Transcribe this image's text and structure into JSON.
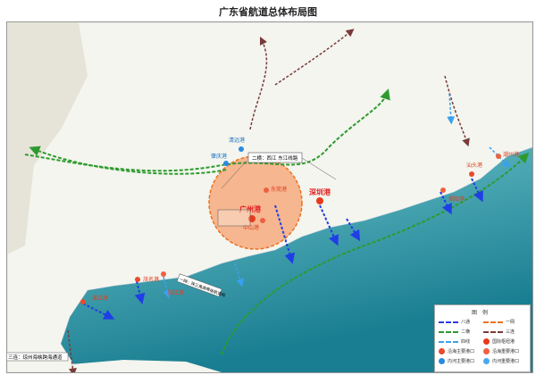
{
  "title": "广东省航道总体布局图",
  "legend": {
    "title": "图例",
    "items": [
      {
        "label": "八通",
        "kind": "line",
        "color": "#2a3de0"
      },
      {
        "label": "一网",
        "kind": "line",
        "color": "#f07020"
      },
      {
        "label": "二横",
        "kind": "line",
        "color": "#2e9a2e"
      },
      {
        "label": "三连",
        "kind": "line",
        "color": "#7a3a3a"
      },
      {
        "label": "四线",
        "kind": "line",
        "color": "#3aa0f0"
      },
      {
        "label": "国际枢纽港",
        "kind": "dot",
        "color": "#e83a1a"
      },
      {
        "label": "沿海主要港口",
        "kind": "dot",
        "color": "#e84a2a"
      },
      {
        "label": "沿海重要港口",
        "kind": "dot",
        "color": "#f06040"
      },
      {
        "label": "内河主要港口",
        "kind": "dot",
        "color": "#2a8ae0"
      },
      {
        "label": "内河重要港口",
        "kind": "dot",
        "color": "#4aa8f0"
      }
    ]
  },
  "ports": {
    "guangzhou": "广州港",
    "shenzhen": "深圳港",
    "dongguan": "东莞港",
    "zhongshan": "中山港",
    "qingyuan": "清远港",
    "zhaoqing": "肇庆港",
    "zhanjiang": "湛江港",
    "maoming": "茂名港",
    "yangjiang": "阳江港",
    "shantou": "汕头港",
    "jieyang": "揭阳港",
    "chaozhou": "潮州港"
  },
  "callouts": {
    "xijiang_dongjiang": "二横：西江 东江线路",
    "qiongzhou": "三连：琼州海峡跨海通道",
    "yiwang": "一网：珠三角高等级航道网"
  },
  "colors": {
    "sea_light": "#9fd6d8",
    "sea_dark": "#1f8a9a",
    "land": "#f4f6f0",
    "circle": "#f59a60"
  }
}
